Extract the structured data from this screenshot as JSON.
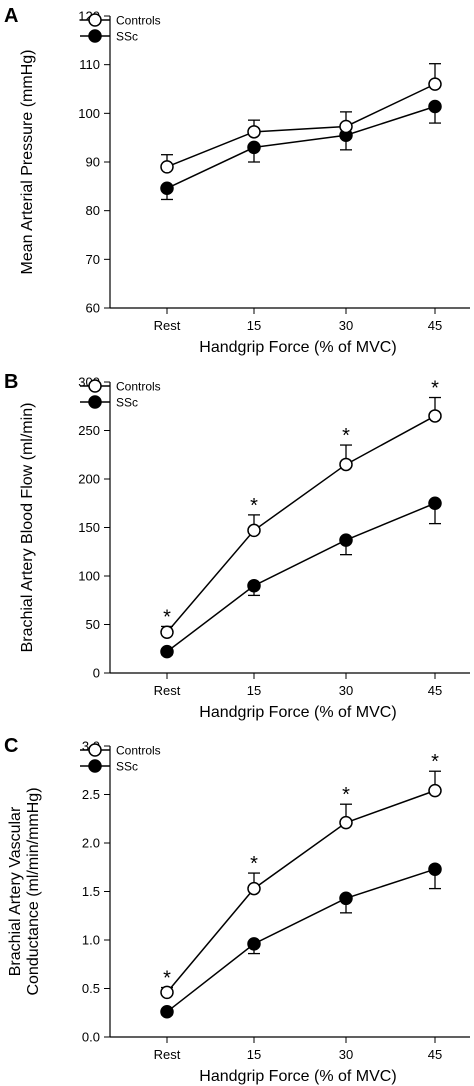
{
  "chart_data": [
    {
      "type": "line",
      "panel": "A",
      "categories": [
        "Rest",
        "15",
        "30",
        "45"
      ],
      "xlabel": "Handgrip Force (% of MVC)",
      "ylabel": [
        "Mean Arterial Pressure (mmHg)"
      ],
      "ylim": [
        60,
        120
      ],
      "yticks": [
        60,
        70,
        80,
        90,
        100,
        110,
        120
      ],
      "legend_position": "top-left",
      "grid": false,
      "series": [
        {
          "name": "Controls",
          "marker": "open-circle",
          "values": [
            89,
            96.2,
            97.3,
            106
          ],
          "errors": [
            2.5,
            2.4,
            3.0,
            4.2
          ]
        },
        {
          "name": "SSc",
          "marker": "filled-circle",
          "values": [
            84.6,
            93,
            95.5,
            101.4
          ],
          "errors": [
            2.3,
            3.0,
            3.0,
            3.4
          ]
        }
      ],
      "significance_marks": [
        "",
        "",
        "",
        ""
      ]
    },
    {
      "type": "line",
      "panel": "B",
      "categories": [
        "Rest",
        "15",
        "30",
        "45"
      ],
      "xlabel": "Handgrip Force (% of MVC)",
      "ylabel": [
        "Brachial Artery Blood Flow (ml/min)"
      ],
      "ylim": [
        0,
        300
      ],
      "yticks": [
        0,
        50,
        100,
        150,
        200,
        250,
        300
      ],
      "legend_position": "top-left",
      "grid": false,
      "series": [
        {
          "name": "Controls",
          "marker": "open-circle",
          "values": [
            42,
            147,
            215,
            265
          ],
          "errors": [
            6,
            16,
            20,
            19
          ]
        },
        {
          "name": "SSc",
          "marker": "filled-circle",
          "values": [
            22,
            90,
            137,
            175
          ],
          "errors": [
            3,
            10,
            15,
            21
          ]
        }
      ],
      "significance_marks": [
        "*",
        "*",
        "*",
        "*"
      ]
    },
    {
      "type": "line",
      "panel": "C",
      "categories": [
        "Rest",
        "15",
        "30",
        "45"
      ],
      "xlabel": "Handgrip Force (% of MVC)",
      "ylabel": [
        "Brachial Artery Vascular",
        "Conductance (ml/min/mmHg)"
      ],
      "ylim": [
        0.0,
        3.0
      ],
      "yticks": [
        "0.0",
        "0.5",
        "1.0",
        "1.5",
        "2.0",
        "2.5",
        "3.0"
      ],
      "legend_position": "top-left",
      "grid": false,
      "series": [
        {
          "name": "Controls",
          "marker": "open-circle",
          "values": [
            0.46,
            1.53,
            2.21,
            2.54
          ],
          "errors": [
            0.05,
            0.16,
            0.19,
            0.2
          ]
        },
        {
          "name": "SSc",
          "marker": "filled-circle",
          "values": [
            0.26,
            0.96,
            1.43,
            1.73
          ],
          "errors": [
            0.03,
            0.1,
            0.15,
            0.2
          ]
        }
      ],
      "significance_marks": [
        "*",
        "*",
        "*",
        "*"
      ]
    }
  ]
}
